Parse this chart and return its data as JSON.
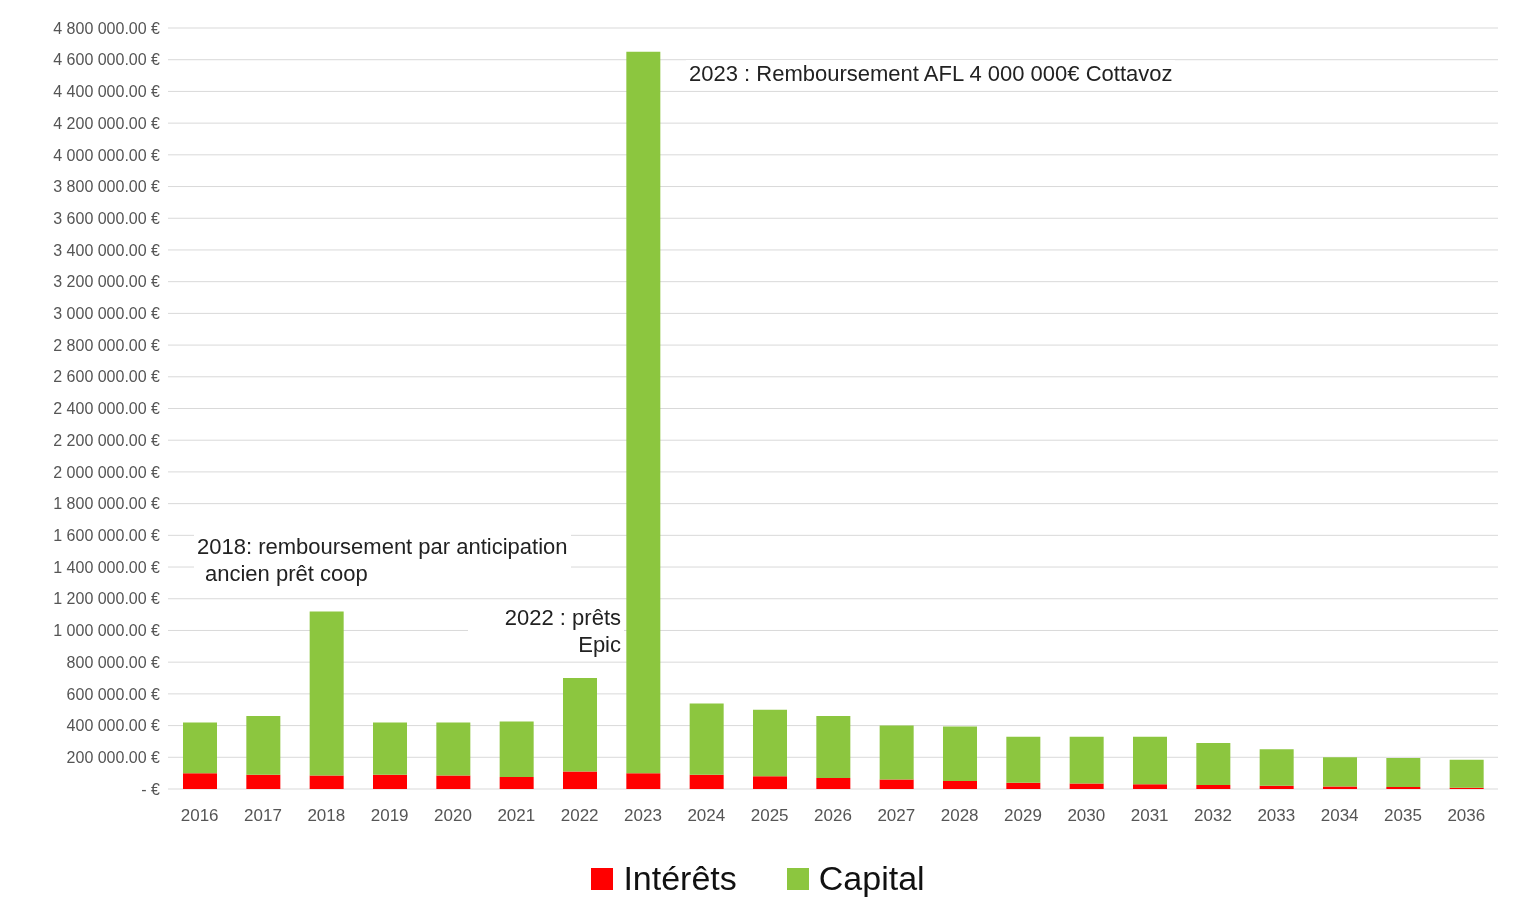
{
  "chart_data": {
    "type": "bar",
    "stacked": true,
    "categories": [
      "2016",
      "2017",
      "2018",
      "2019",
      "2020",
      "2021",
      "2022",
      "2023",
      "2024",
      "2025",
      "2026",
      "2027",
      "2028",
      "2029",
      "2030",
      "2031",
      "2032",
      "2033",
      "2034",
      "2035",
      "2036"
    ],
    "series": [
      {
        "name": "Intérêts",
        "color": "#ff0000",
        "values": [
          100000,
          90000,
          85000,
          90000,
          85000,
          75000,
          110000,
          100000,
          90000,
          80000,
          70000,
          60000,
          50000,
          40000,
          35000,
          30000,
          25000,
          20000,
          15000,
          12000,
          8000
        ]
      },
      {
        "name": "Capital",
        "color": "#8cc63f",
        "values": [
          320000,
          370000,
          1035000,
          330000,
          335000,
          350000,
          590000,
          4550000,
          450000,
          420000,
          390000,
          340000,
          345000,
          290000,
          295000,
          300000,
          265000,
          230000,
          185000,
          183000,
          177000
        ]
      }
    ],
    "ylim": [
      0,
      4800000
    ],
    "yticks": [
      {
        "value": 0,
        "label": "-  €"
      },
      {
        "value": 200000,
        "label": "200 000.00 €"
      },
      {
        "value": 400000,
        "label": "400 000.00 €"
      },
      {
        "value": 600000,
        "label": "600 000.00 €"
      },
      {
        "value": 800000,
        "label": "800 000.00 €"
      },
      {
        "value": 1000000,
        "label": "1 000 000.00 €"
      },
      {
        "value": 1200000,
        "label": "1 200 000.00 €"
      },
      {
        "value": 1400000,
        "label": "1 400 000.00 €"
      },
      {
        "value": 1600000,
        "label": "1 600 000.00 €"
      },
      {
        "value": 1800000,
        "label": "1 800 000.00 €"
      },
      {
        "value": 2000000,
        "label": "2 000 000.00 €"
      },
      {
        "value": 2200000,
        "label": "2 200 000.00 €"
      },
      {
        "value": 2400000,
        "label": "2 400 000.00 €"
      },
      {
        "value": 2600000,
        "label": "2 600 000.00 €"
      },
      {
        "value": 2800000,
        "label": "2 800 000.00 €"
      },
      {
        "value": 3000000,
        "label": "3 000 000.00 €"
      },
      {
        "value": 3200000,
        "label": "3 200 000.00 €"
      },
      {
        "value": 3400000,
        "label": "3 400 000.00 €"
      },
      {
        "value": 3600000,
        "label": "3 600 000.00 €"
      },
      {
        "value": 3800000,
        "label": "3 800 000.00 €"
      },
      {
        "value": 4000000,
        "label": "4 000 000.00 €"
      },
      {
        "value": 4200000,
        "label": "4 200 000.00 €"
      },
      {
        "value": 4400000,
        "label": "4 400 000.00 €"
      },
      {
        "value": 4600000,
        "label": "4 600 000.00 €"
      },
      {
        "value": 4800000,
        "label": "4 800 000.00 €"
      }
    ],
    "grid": "y",
    "legend": "bottom",
    "annotations": [
      "2018: remboursement par anticipation\nancien prêt coop",
      "2022 : prêts\nEpic",
      "2023 : Remboursement AFL 4 000 000€ Cottavoz"
    ]
  }
}
